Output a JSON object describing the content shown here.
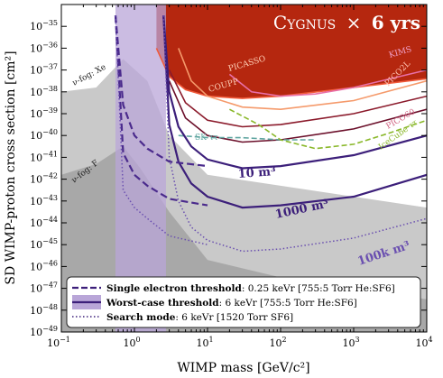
{
  "chart_data": {
    "type": "line",
    "title": "CYGNUS × 6 yrs",
    "title_parts": {
      "name": "Cygnus",
      "times": "×",
      "duration": "6 yrs"
    },
    "xlabel": "WIMP mass [GeV/c²]",
    "ylabel": "SD WIMP-proton cross section [cm²]",
    "x_scale": "log",
    "y_scale": "log",
    "xlim": [
      0.1,
      10000
    ],
    "ylim": [
      1e-49,
      1e-34
    ],
    "x_ticks": [
      {
        "v": 0.1,
        "m": "10",
        "e": "−1"
      },
      {
        "v": 1,
        "m": "10",
        "e": "0"
      },
      {
        "v": 10,
        "m": "10",
        "e": "1"
      },
      {
        "v": 100,
        "m": "10",
        "e": "2"
      },
      {
        "v": 1000,
        "m": "10",
        "e": "3"
      },
      {
        "v": 10000,
        "m": "10",
        "e": "4"
      }
    ],
    "y_ticks": [
      {
        "v": -35,
        "m": "10",
        "e": "−35"
      },
      {
        "v": -36,
        "m": "10",
        "e": "−36"
      },
      {
        "v": -37,
        "m": "10",
        "e": "−37"
      },
      {
        "v": -38,
        "m": "10",
        "e": "−38"
      },
      {
        "v": -39,
        "m": "10",
        "e": "−39"
      },
      {
        "v": -40,
        "m": "10",
        "e": "−40"
      },
      {
        "v": -41,
        "m": "10",
        "e": "−41"
      },
      {
        "v": -42,
        "m": "10",
        "e": "−42"
      },
      {
        "v": -43,
        "m": "10",
        "e": "−43"
      },
      {
        "v": -44,
        "m": "10",
        "e": "−44"
      },
      {
        "v": -45,
        "m": "10",
        "e": "−45"
      },
      {
        "v": -46,
        "m": "10",
        "e": "−46"
      },
      {
        "v": -47,
        "m": "10",
        "e": "−47"
      },
      {
        "v": -48,
        "m": "10",
        "e": "−48"
      },
      {
        "v": -49,
        "m": "10",
        "e": "−49"
      }
    ],
    "neutrino_fog": [
      {
        "label": "ν-fog: Xe",
        "color": "#c9c9c9",
        "x": [
          0.1,
          0.3,
          0.7,
          1.5,
          3,
          10,
          100,
          1000,
          10000
        ],
        "y": [
          -38.0,
          -37.8,
          -36.5,
          -37.5,
          -40.0,
          -41.8,
          -42.3,
          -42.8,
          -43.3
        ]
      },
      {
        "label": "ν-fog: F",
        "color": "#a8a8a8",
        "x": [
          0.1,
          0.3,
          0.7,
          1.2,
          3,
          10,
          100,
          1000,
          10000
        ],
        "y": [
          -41.8,
          -41.3,
          -40.5,
          -41.5,
          -43.5,
          -45.7,
          -46.5,
          -47.0,
          -47.5
        ]
      }
    ],
    "experiments": [
      {
        "name": "PICASSO",
        "color": "#f15a3a",
        "x": [
          2,
          3,
          5,
          10,
          30,
          100,
          1000,
          10000
        ],
        "y": [
          -36.0,
          -37.3,
          -37.9,
          -38.2,
          -38.3,
          -38.2,
          -37.8,
          -37.4
        ]
      },
      {
        "name": "KIMS",
        "color": "#e86fa8",
        "x": [
          20,
          40,
          100,
          300,
          1000,
          10000
        ],
        "y": [
          -37.2,
          -38.0,
          -38.2,
          -38.1,
          -37.8,
          -37.0
        ]
      },
      {
        "name": "COUPP",
        "color": "#f59a6b",
        "x": [
          4,
          6,
          10,
          30,
          100,
          1000,
          10000
        ],
        "y": [
          -36.0,
          -37.5,
          -38.2,
          -38.7,
          -38.8,
          -38.4,
          -37.5
        ]
      },
      {
        "name": "PICO2L",
        "color": "#8b1a2b",
        "x": [
          3,
          5,
          10,
          30,
          100,
          1000,
          10000
        ],
        "y": [
          -37.0,
          -38.5,
          -39.3,
          -39.6,
          -39.5,
          -39.0,
          -38.2
        ]
      },
      {
        "name": "PICO60",
        "color": "#6b0f2a",
        "x": [
          3,
          5,
          10,
          30,
          100,
          1000,
          10000
        ],
        "y": [
          -37.5,
          -39.2,
          -40.0,
          -40.3,
          -40.2,
          -39.7,
          -38.8
        ]
      },
      {
        "name": "SK ττ",
        "color": "#5fa5a0",
        "dashed": true,
        "x": [
          4,
          10,
          30,
          100,
          300
        ],
        "y": [
          -40.0,
          -40.1,
          -40.1,
          -40.2,
          -40.2
        ]
      },
      {
        "name": "IceCube ττ",
        "color": "#8ab82a",
        "dashed": true,
        "x": [
          20,
          50,
          100,
          300,
          1000,
          3000,
          10000
        ],
        "y": [
          -38.8,
          -39.5,
          -40.2,
          -40.6,
          -40.4,
          -39.9,
          -39.3
        ]
      }
    ],
    "red_region_color": "#b5270f",
    "cygnus_curves": [
      {
        "label": "10 m³",
        "color": "#3c1f7a",
        "x": [
          2.5,
          3,
          4,
          6,
          10,
          30,
          100,
          1000,
          10000
        ],
        "y": [
          -34.5,
          -38.0,
          -39.6,
          -40.5,
          -41.1,
          -41.5,
          -41.4,
          -40.9,
          -40.0
        ]
      },
      {
        "label": "1000 m³",
        "color": "#3c1f7a",
        "x": [
          2.5,
          3,
          4,
          6,
          10,
          30,
          100,
          1000,
          10000
        ],
        "y": [
          -34.5,
          -39.5,
          -41.2,
          -42.2,
          -42.8,
          -43.3,
          -43.2,
          -42.8,
          -41.8
        ]
      },
      {
        "label": "100k m³",
        "color": "#6a4fb0",
        "dotted": true,
        "x": [
          2.5,
          3,
          4,
          6,
          10,
          30,
          100,
          1000,
          10000
        ],
        "y": [
          -34.5,
          -41.0,
          -43.0,
          -44.2,
          -44.8,
          -45.3,
          -45.2,
          -44.7,
          -43.8
        ]
      },
      {
        "label": "",
        "color": "#4a2a8c",
        "dashed": true,
        "x": [
          0.55,
          0.7,
          1,
          1.5,
          3,
          10
        ],
        "y": [
          -34.5,
          -38.6,
          -40.0,
          -40.6,
          -41.2,
          -41.4
        ]
      },
      {
        "label": "",
        "color": "#4a2a8c",
        "dashed": true,
        "x": [
          0.55,
          0.7,
          1,
          1.5,
          3,
          10
        ],
        "y": [
          -34.5,
          -40.8,
          -41.8,
          -42.3,
          -42.9,
          -43.2
        ]
      },
      {
        "label": "",
        "color": "#6a4fb0",
        "dotted": true,
        "x": [
          0.55,
          0.7,
          1,
          1.5,
          3,
          10
        ],
        "y": [
          -34.5,
          -42.5,
          -43.3,
          -43.8,
          -44.6,
          -45.0
        ]
      }
    ],
    "swath": {
      "color": "#b9a6d8",
      "x_left": 0.55,
      "x_right": 2.7
    },
    "curve_labels": [
      {
        "text": "PICASSO",
        "color": "#ffd0b8",
        "size": 9
      },
      {
        "text": "KIMS",
        "color": "#f0a0c8",
        "size": 9
      },
      {
        "text": "COUPP",
        "color": "#ffd0b8",
        "size": 9
      },
      {
        "text": "PICO2L",
        "color": "#ffc0b0",
        "size": 9
      },
      {
        "text": "PICO60",
        "color": "#d06080",
        "size": 9
      },
      {
        "text": "SK ττ",
        "color": "#5fa5a0",
        "size": 9
      },
      {
        "text": "IceCube ττ",
        "color": "#8ab82a",
        "size": 9
      },
      {
        "text": "10 m³",
        "color": "#3c1f7a",
        "size": 13
      },
      {
        "text": "1000 m³",
        "color": "#3c1f7a",
        "size": 13
      },
      {
        "text": "100k m³",
        "color": "#6a4fb0",
        "size": 13
      },
      {
        "text": "ν-fog: Xe",
        "color": "#222222",
        "size": 9
      },
      {
        "text": "ν-fog: F",
        "color": "#222222",
        "size": 9
      }
    ],
    "legend": {
      "placement": "bottom-left",
      "entries": [
        {
          "bold": "Single electron threshold",
          "text": ": 0.25 keVr [755:5 Torr He:SF6]",
          "style": "dashed"
        },
        {
          "bold": "Worst-case threshold",
          "text": ": 6 keVr [755:5 Torr He:SF6]",
          "style": "solid-band"
        },
        {
          "bold": "Search mode",
          "text": ": 6 keVr [1520 Torr SF6]",
          "style": "dotted"
        }
      ]
    }
  }
}
